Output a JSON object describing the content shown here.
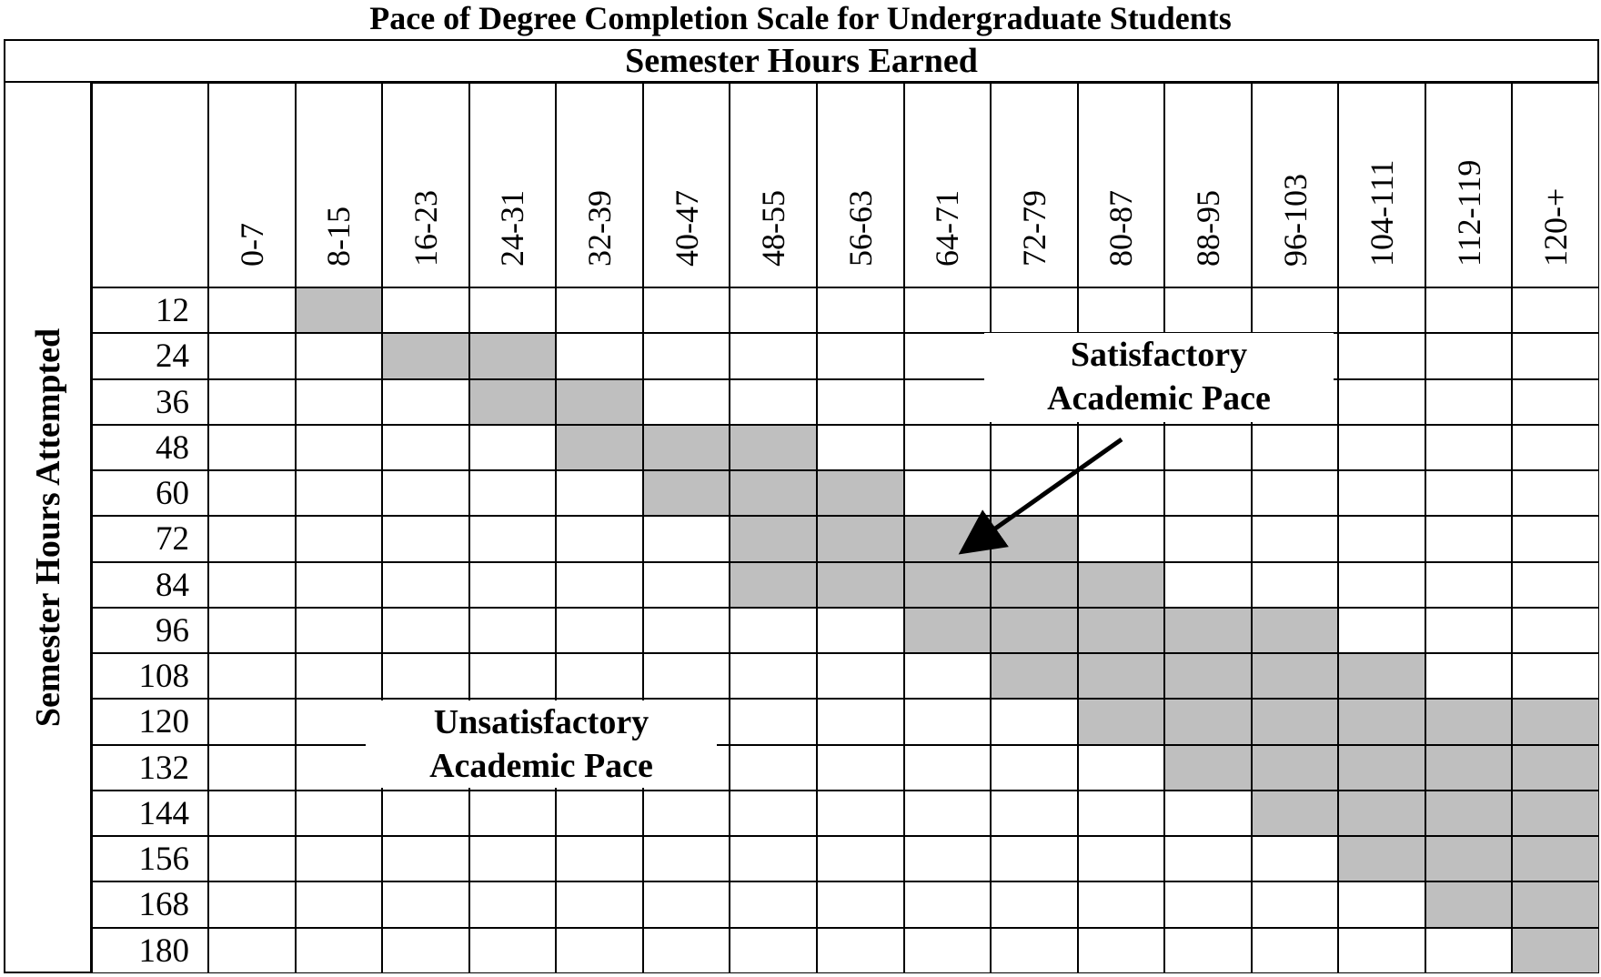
{
  "title": "Pace of Degree Completion Scale for Undergraduate Students",
  "column_header": "Semester Hours Earned",
  "row_header": "Semester Hours Attempted",
  "columns": [
    "0-7",
    "8-15",
    "16-23",
    "24-31",
    "32-39",
    "40-47",
    "48-55",
    "56-63",
    "64-71",
    "72-79",
    "80-87",
    "88-95",
    "96-103",
    "104-111",
    "112-119",
    "120-+"
  ],
  "rows": [
    "12",
    "24",
    "36",
    "48",
    "60",
    "72",
    "84",
    "96",
    "108",
    "120",
    "132",
    "144",
    "156",
    "168",
    "180"
  ],
  "shaded_ranges": [
    {
      "row": "12",
      "from_col": 1,
      "to_col": 1
    },
    {
      "row": "24",
      "from_col": 2,
      "to_col": 3
    },
    {
      "row": "36",
      "from_col": 3,
      "to_col": 4
    },
    {
      "row": "48",
      "from_col": 4,
      "to_col": 6
    },
    {
      "row": "60",
      "from_col": 5,
      "to_col": 7
    },
    {
      "row": "72",
      "from_col": 6,
      "to_col": 9
    },
    {
      "row": "84",
      "from_col": 6,
      "to_col": 10
    },
    {
      "row": "96",
      "from_col": 8,
      "to_col": 12
    },
    {
      "row": "108",
      "from_col": 9,
      "to_col": 13
    },
    {
      "row": "120",
      "from_col": 10,
      "to_col": 15
    },
    {
      "row": "132",
      "from_col": 11,
      "to_col": 15
    },
    {
      "row": "144",
      "from_col": 12,
      "to_col": 15
    },
    {
      "row": "156",
      "from_col": 13,
      "to_col": 15
    },
    {
      "row": "168",
      "from_col": 14,
      "to_col": 15
    },
    {
      "row": "180",
      "from_col": 15,
      "to_col": 15
    }
  ],
  "labels": {
    "satisfactory_line1": "Satisfactory",
    "satisfactory_line2": "Academic Pace",
    "unsatisfactory_line1": "Unsatisfactory",
    "unsatisfactory_line2": "Academic Pace"
  },
  "colors": {
    "shaded": "#bfbfbf",
    "grid_line": "#000000",
    "background": "#ffffff"
  }
}
